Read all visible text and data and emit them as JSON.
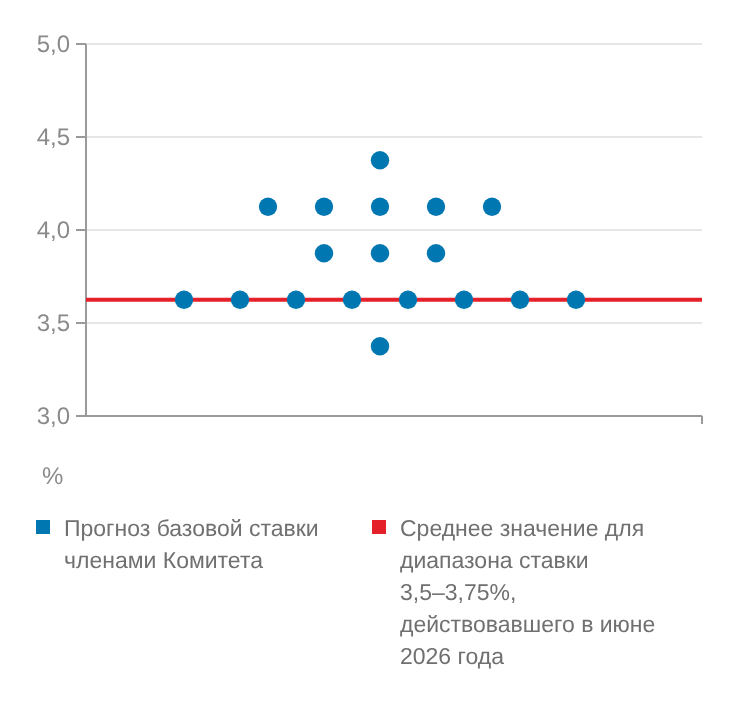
{
  "chart_data": {
    "type": "scatter",
    "ylabel": "%",
    "categories": [
      null,
      null,
      null,
      null,
      null,
      null,
      null,
      null,
      null,
      null,
      null,
      null,
      null,
      null,
      null,
      null,
      null,
      null,
      null,
      null,
      null,
      null
    ],
    "ylim": [
      3.0,
      5.0
    ],
    "yticks": [
      {
        "value": 3.0,
        "label": "3,0"
      },
      {
        "value": 3.5,
        "label": "3,5"
      },
      {
        "value": 4.0,
        "label": "4,0"
      },
      {
        "value": 4.5,
        "label": "4,5"
      },
      {
        "value": 5.0,
        "label": "5,0"
      }
    ],
    "tick_labels": "y",
    "grid": "y",
    "legend": "bottom",
    "marker": "circle",
    "series": [
      {
        "name": "Прогноз базовой ставки членами Комитета",
        "color": "#0077b0",
        "values": [
          null,
          null,
          null,
          3.625,
          null,
          3.625,
          null,
          3.625,
          null,
          3.625,
          null,
          3.625,
          null,
          3.625,
          null,
          3.625,
          null,
          3.625,
          null,
          null,
          null,
          null
        ]
      },
      {
        "color": "#0077b0",
        "values": [
          null,
          null,
          null,
          null,
          null,
          null,
          4.125,
          null,
          4.125,
          null,
          4.125,
          null,
          4.125,
          null,
          4.125,
          null,
          null,
          null,
          null,
          null,
          null,
          null
        ]
      },
      {
        "color": "#0077b0",
        "values": [
          null,
          null,
          null,
          null,
          null,
          null,
          null,
          null,
          3.875,
          null,
          3.875,
          null,
          3.875,
          null,
          null,
          null,
          null,
          null,
          null,
          null,
          null,
          null
        ]
      },
      {
        "color": "#0077b0",
        "values": [
          null,
          null,
          null,
          null,
          null,
          null,
          null,
          null,
          null,
          null,
          4.375,
          null,
          null,
          null,
          null,
          null,
          null,
          null,
          null,
          null,
          null,
          null
        ]
      },
      {
        "color": "#0077b0",
        "values": [
          null,
          null,
          null,
          null,
          null,
          null,
          null,
          null,
          null,
          null,
          3.375,
          null,
          null,
          null,
          null,
          null,
          null,
          null,
          null,
          null,
          null,
          null
        ]
      }
    ],
    "ref_lines": [
      {
        "axis": "y",
        "value": 3.625,
        "label": "Среднее значение для диапазона ставки 3,5–3,75%, действовавшего в июне 2026 года",
        "color": "#e4202a"
      }
    ]
  }
}
